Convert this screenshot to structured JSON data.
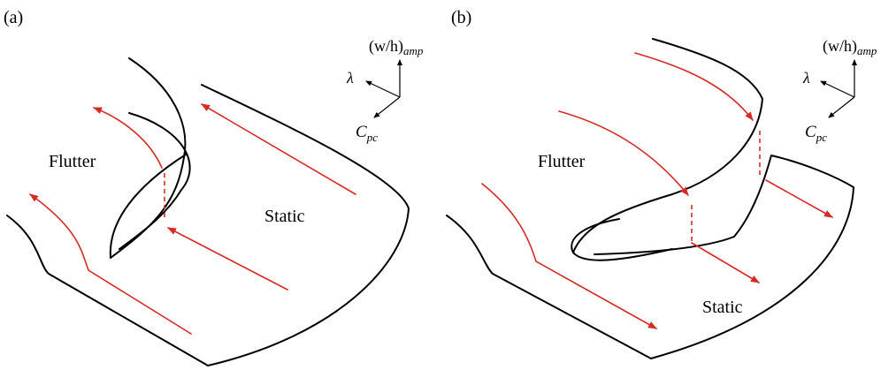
{
  "panel_a": {
    "label": "(a)",
    "flutter_label": "Flutter",
    "static_label": "Static",
    "axes": {
      "top_label_main": "(w/h)",
      "top_label_sub": "amp",
      "left_label": "λ",
      "bottom_label_main": "C",
      "bottom_label_sub": "pc"
    }
  },
  "panel_b": {
    "label": "(b)",
    "flutter_label": "Flutter",
    "static_label": "Static",
    "axes": {
      "top_label_main": "(w/h)",
      "top_label_sub": "amp",
      "left_label": "λ",
      "bottom_label_main": "C",
      "bottom_label_sub": "pc"
    }
  },
  "colors": {
    "curve": "#000000",
    "arrow": "#d62a24"
  }
}
